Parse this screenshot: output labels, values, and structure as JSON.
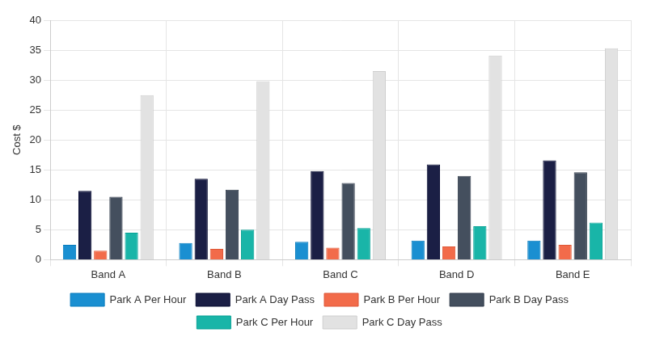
{
  "chart_data": {
    "type": "bar",
    "y_label": "Cost $",
    "categories": [
      "Band A",
      "Band B",
      "Band C",
      "Band D",
      "Band E"
    ],
    "series": [
      {
        "name": "Park A Per Hour",
        "color": "#1a8fd1",
        "values": [
          2.5,
          2.8,
          3.0,
          3.2,
          3.2
        ]
      },
      {
        "name": "Park A Day Pass",
        "color": "#1b1f45",
        "values": [
          11.5,
          13.5,
          14.8,
          15.9,
          16.6
        ]
      },
      {
        "name": "Park B Per Hour",
        "color": "#f26b4a",
        "values": [
          1.5,
          1.8,
          2.0,
          2.2,
          2.5
        ]
      },
      {
        "name": "Park B Day Pass",
        "color": "#444f5e",
        "values": [
          10.5,
          11.7,
          12.8,
          14.0,
          14.6
        ]
      },
      {
        "name": "Park C Per Hour",
        "color": "#19b5a8",
        "values": [
          4.5,
          5.0,
          5.3,
          5.6,
          6.2
        ]
      },
      {
        "name": "Park C Day Pass",
        "color": "#e2e2e2",
        "values": [
          27.5,
          29.8,
          31.5,
          34.1,
          35.3
        ]
      }
    ],
    "ylim": [
      0,
      40
    ],
    "yticks": [
      0,
      5,
      10,
      15,
      20,
      25,
      30,
      35,
      40
    ],
    "grid": true,
    "legend": "bottom"
  }
}
